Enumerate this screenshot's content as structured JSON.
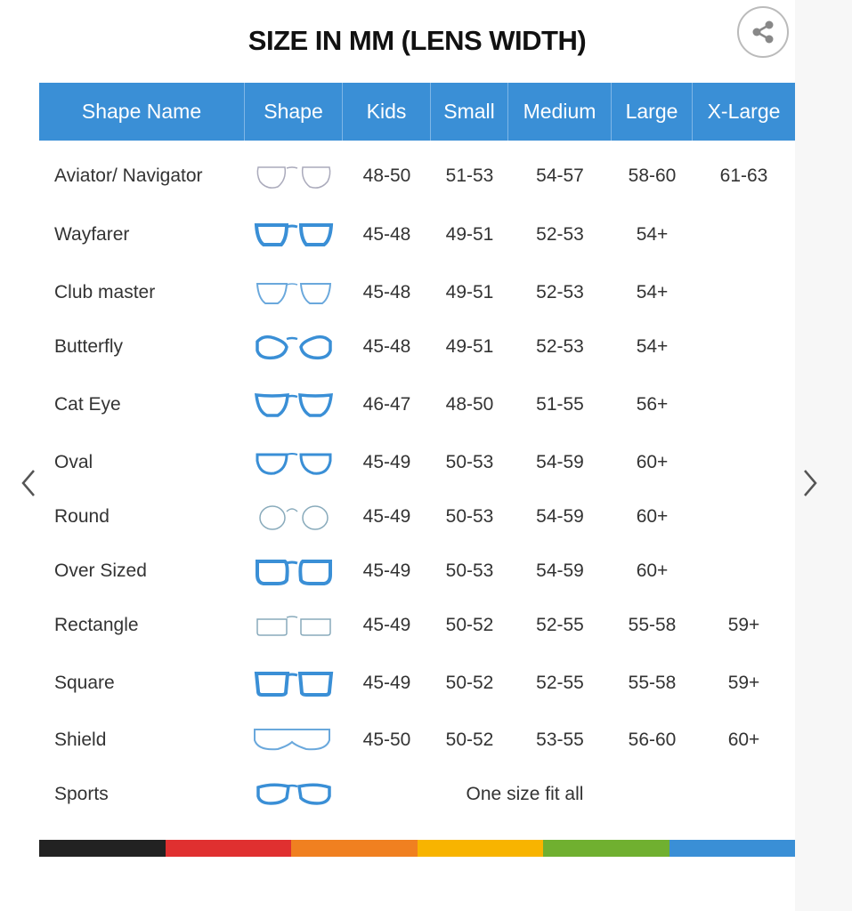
{
  "title": "SIZE IN MM (LENS WIDTH)",
  "share_icon": "share-icon",
  "nav": {
    "prev_icon": "chevron-left-icon",
    "next_icon": "chevron-right-icon"
  },
  "accent_color": "#3a8fd6",
  "headers": [
    "Shape Name",
    "Shape",
    "Kids",
    "Small",
    "Medium",
    "Large",
    "X-Large"
  ],
  "rows": [
    {
      "name": "Aviator/ Navigator",
      "shape": "aviator",
      "sizes": [
        "48-50",
        "51-53",
        "54-57",
        "58-60",
        "61-63"
      ]
    },
    {
      "name": "Wayfarer",
      "shape": "wayfarer",
      "sizes": [
        "45-48",
        "49-51",
        "52-53",
        "54+",
        ""
      ]
    },
    {
      "name": "Club master",
      "shape": "clubmaster",
      "sizes": [
        "45-48",
        "49-51",
        "52-53",
        "54+",
        ""
      ]
    },
    {
      "name": "Butterfly",
      "shape": "butterfly",
      "sizes": [
        "45-48",
        "49-51",
        "52-53",
        "54+",
        ""
      ]
    },
    {
      "name": "Cat Eye",
      "shape": "cateye",
      "sizes": [
        "46-47",
        "48-50",
        "51-55",
        "56+",
        ""
      ]
    },
    {
      "name": "Oval",
      "shape": "oval",
      "sizes": [
        "45-49",
        "50-53",
        "54-59",
        "60+",
        ""
      ]
    },
    {
      "name": "Round",
      "shape": "round",
      "sizes": [
        "45-49",
        "50-53",
        "54-59",
        "60+",
        ""
      ]
    },
    {
      "name": "Over Sized",
      "shape": "oversized",
      "sizes": [
        "45-49",
        "50-53",
        "54-59",
        "60+",
        ""
      ]
    },
    {
      "name": "Rectangle",
      "shape": "rectangle",
      "sizes": [
        "45-49",
        "50-52",
        "52-55",
        "55-58",
        "59+"
      ]
    },
    {
      "name": "Square",
      "shape": "square",
      "sizes": [
        "45-49",
        "50-52",
        "52-55",
        "55-58",
        "59+"
      ]
    },
    {
      "name": "Shield",
      "shape": "shield",
      "sizes": [
        "45-50",
        "50-52",
        "53-55",
        "56-60",
        "60+"
      ]
    },
    {
      "name": "Sports",
      "shape": "sports",
      "sizes": [],
      "note": "One size fit all"
    }
  ],
  "color_bar": [
    "#222222",
    "#e03030",
    "#f08020",
    "#f8b400",
    "#70b030",
    "#3a8fd6"
  ]
}
